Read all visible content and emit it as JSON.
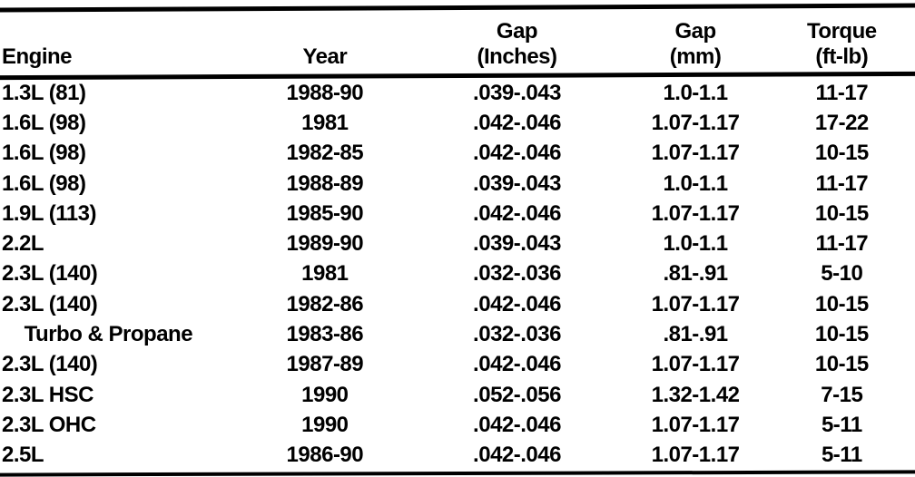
{
  "colors": {
    "ink": "#000000",
    "paper": "#ffffff"
  },
  "table": {
    "header": {
      "engine": "Engine",
      "year": "Year",
      "gap_inches_line1": "Gap",
      "gap_inches_line2": "(Inches)",
      "gap_mm_line1": "Gap",
      "gap_mm_line2": "(mm)",
      "torque_line1": "Torque",
      "torque_line2": "(ft-lb)"
    },
    "rows": [
      {
        "engine": "1.3L (81)",
        "year": "1988-90",
        "gap_in": ".039-.043",
        "gap_mm": "1.0-1.1",
        "torque": "11-17"
      },
      {
        "engine": "1.6L (98)",
        "year": "1981",
        "gap_in": ".042-.046",
        "gap_mm": "1.07-1.17",
        "torque": "17-22"
      },
      {
        "engine": "1.6L (98)",
        "year": "1982-85",
        "gap_in": ".042-.046",
        "gap_mm": "1.07-1.17",
        "torque": "10-15"
      },
      {
        "engine": "1.6L (98)",
        "year": "1988-89",
        "gap_in": ".039-.043",
        "gap_mm": "1.0-1.1",
        "torque": "11-17"
      },
      {
        "engine": "1.9L (113)",
        "year": "1985-90",
        "gap_in": ".042-.046",
        "gap_mm": "1.07-1.17",
        "torque": "10-15"
      },
      {
        "engine": "2.2L",
        "year": "1989-90",
        "gap_in": ".039-.043",
        "gap_mm": "1.0-1.1",
        "torque": "11-17"
      },
      {
        "engine": "2.3L (140)",
        "year": "1981",
        "gap_in": ".032-.036",
        "gap_mm": ".81-.91",
        "torque": "5-10"
      },
      {
        "engine": "2.3L (140)",
        "year": "1982-86",
        "gap_in": ".042-.046",
        "gap_mm": "1.07-1.17",
        "torque": "10-15"
      },
      {
        "engine": "    Turbo & Propane",
        "year": "1983-86",
        "gap_in": ".032-.036",
        "gap_mm": ".81-.91",
        "torque": "10-15"
      },
      {
        "engine": "2.3L (140)",
        "year": "1987-89",
        "gap_in": ".042-.046",
        "gap_mm": "1.07-1.17",
        "torque": "10-15"
      },
      {
        "engine": "2.3L HSC",
        "year": "1990",
        "gap_in": ".052-.056",
        "gap_mm": "1.32-1.42",
        "torque": "7-15"
      },
      {
        "engine": "2.3L OHC",
        "year": "1990",
        "gap_in": ".042-.046",
        "gap_mm": "1.07-1.17",
        "torque": "5-11"
      },
      {
        "engine": "2.5L",
        "year": "1986-90",
        "gap_in": ".042-.046",
        "gap_mm": "1.07-1.17",
        "torque": "5-11"
      }
    ]
  }
}
